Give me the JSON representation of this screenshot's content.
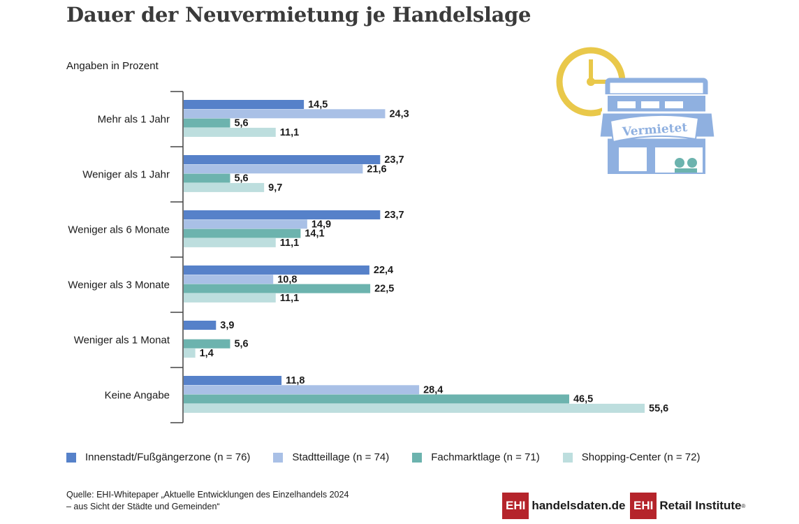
{
  "title": "Dauer der Neuvermietung je Handelslage",
  "subtitle": "Angaben in Prozent",
  "colors": {
    "innenstadt": "#5681c9",
    "stadtteil": "#a9c0e6",
    "fachmarkt": "#6cb3ae",
    "shopping": "#bddede",
    "icon_clock": "#e9c84a",
    "icon_store": "#8fb0e0"
  },
  "chart_data": {
    "type": "bar",
    "orientation": "horizontal",
    "categories": [
      "Mehr als 1 Jahr",
      "Weniger als 1 Jahr",
      "Weniger als 6 Monate",
      "Weniger als 3 Monate",
      "Weniger als 1 Monat",
      "Keine Angabe"
    ],
    "series": [
      {
        "name": "Innenstadt/Fußgängerzone (n = 76)",
        "values": [
          14.5,
          23.7,
          23.7,
          22.4,
          3.9,
          11.8
        ],
        "labels": [
          "14,5",
          "23,7",
          "23,7",
          "22,4",
          "3,9",
          "11,8"
        ]
      },
      {
        "name": "Stadtteillage (n = 74)",
        "values": [
          24.3,
          21.6,
          14.9,
          10.8,
          null,
          28.4
        ],
        "labels": [
          "24,3",
          "21,6",
          "14,9",
          "10,8",
          null,
          "28,4"
        ]
      },
      {
        "name": "Fachmarktlage (n = 71)",
        "values": [
          5.6,
          5.6,
          14.1,
          22.5,
          5.6,
          46.5
        ],
        "labels": [
          "5,6",
          "5,6",
          "14,1",
          "22,5",
          "5,6",
          "46,5"
        ]
      },
      {
        "name": "Shopping-Center (n = 72)",
        "values": [
          11.1,
          9.7,
          11.1,
          11.1,
          1.4,
          55.6
        ],
        "labels": [
          "11,1",
          "9,7",
          "11,1",
          "11,1",
          "1,4",
          "55,6"
        ]
      }
    ],
    "xlim": [
      0,
      55.6
    ],
    "grid": false,
    "legend": "bottom"
  },
  "legend": [
    {
      "label": "Innenstadt/Fußgängerzone (n = 76)"
    },
    {
      "label": "Stadtteillage (n = 74)"
    },
    {
      "label": "Fachmarktlage (n = 71)"
    },
    {
      "label": "Shopping-Center (n = 72)"
    }
  ],
  "illustration": {
    "sign_text": "Vermietet"
  },
  "source": {
    "line1": "Quelle: EHI-Whitepaper „Aktuelle Entwicklungen des Einzelhandels 2024",
    "line2": "– aus Sicht der Städte und Gemeinden“"
  },
  "logos": {
    "left_box": "EHI",
    "left_text": "handelsdaten.de",
    "right_box": "EHI",
    "right_text": "Retail Institute",
    "right_mark": "®"
  }
}
